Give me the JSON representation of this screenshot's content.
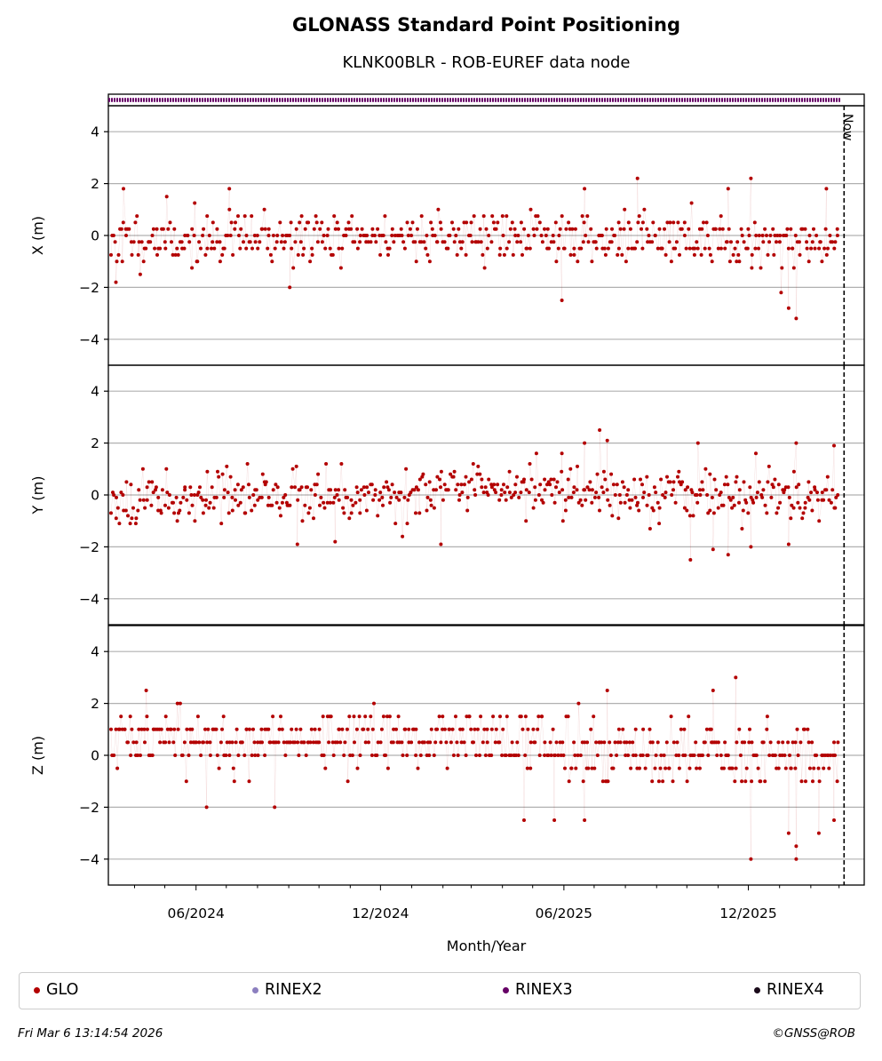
{
  "title": "GLONASS Standard Point Positioning",
  "subtitle": "KLNK00BLR - ROB-EUREF data node",
  "now_label": "Now",
  "xlabel": "Month/Year",
  "x_ticks": [
    "06/2024",
    "12/2024",
    "06/2025",
    "12/2025"
  ],
  "legend": [
    {
      "label": "GLO",
      "color": "#b30000"
    },
    {
      "label": "RINEX2",
      "color": "#8c7fbf"
    },
    {
      "label": "RINEX3",
      "color": "#660066"
    },
    {
      "label": "RINEX4",
      "color": "#1a0a1a"
    }
  ],
  "footer_left": "Fri Mar  6 13:14:54 2026",
  "footer_right": "©GNSS@ROB",
  "chart_data": {
    "type": "scatter",
    "x_range": [
      "2024-03-06",
      "2026-03-26"
    ],
    "now": "2026-03-06",
    "grid": true,
    "legend_position": "bottom",
    "availability_bar": {
      "format": "RINEX3",
      "from": "2024-03-06",
      "to": "2026-03-03"
    },
    "panels": [
      {
        "name": "X",
        "ylabel": "X (m)",
        "ylim": [
          -5,
          5
        ],
        "yticks": [
          -4,
          -2,
          0,
          2,
          4
        ],
        "seed": 11,
        "trend": [
          [
            0,
            -0.2
          ],
          [
            0.5,
            0
          ],
          [
            1,
            -0.3
          ]
        ],
        "spread": 0.8,
        "quant": 0.25,
        "outliers": [
          [
            0.01,
            -1.8
          ],
          [
            0.02,
            1.8
          ],
          [
            0.16,
            1.8
          ],
          [
            0.24,
            -2.0
          ],
          [
            0.6,
            -2.5
          ],
          [
            0.63,
            1.8
          ],
          [
            0.7,
            2.2
          ],
          [
            0.82,
            1.8
          ],
          [
            0.85,
            2.2
          ],
          [
            0.89,
            -2.2
          ],
          [
            0.9,
            -2.8
          ],
          [
            0.91,
            -3.2
          ],
          [
            0.95,
            1.8
          ]
        ]
      },
      {
        "name": "Y",
        "ylabel": "Y (m)",
        "ylim": [
          -5,
          5
        ],
        "yticks": [
          -4,
          -2,
          0,
          2,
          4
        ],
        "seed": 23,
        "trend": [
          [
            0,
            -0.1
          ],
          [
            0.45,
            0.1
          ],
          [
            0.62,
            0.3
          ],
          [
            0.75,
            0
          ],
          [
            1,
            0
          ]
        ],
        "spread": 0.75,
        "quant": 0.1,
        "outliers": [
          [
            0.25,
            -1.9
          ],
          [
            0.3,
            -1.8
          ],
          [
            0.44,
            -1.9
          ],
          [
            0.6,
            1.6
          ],
          [
            0.63,
            2.0
          ],
          [
            0.65,
            2.5
          ],
          [
            0.66,
            2.1
          ],
          [
            0.77,
            -2.5
          ],
          [
            0.78,
            2.0
          ],
          [
            0.8,
            -2.1
          ],
          [
            0.82,
            -2.3
          ],
          [
            0.85,
            -2.0
          ],
          [
            0.91,
            2.0
          ],
          [
            0.9,
            -1.9
          ],
          [
            0.96,
            1.9
          ]
        ]
      },
      {
        "name": "Z",
        "ylabel": "Z (m)",
        "ylim": [
          -5,
          5
        ],
        "yticks": [
          -4,
          -2,
          0,
          2,
          4
        ],
        "seed": 37,
        "trend": [
          [
            0,
            0.5
          ],
          [
            0.55,
            0.6
          ],
          [
            0.6,
            0.2
          ],
          [
            0.75,
            0
          ],
          [
            1,
            0
          ]
        ],
        "spread": 0.9,
        "quant": 0.5,
        "outliers": [
          [
            0.05,
            2.5
          ],
          [
            0.13,
            -2.0
          ],
          [
            0.22,
            -2.0
          ],
          [
            0.55,
            -2.5
          ],
          [
            0.59,
            -2.5
          ],
          [
            0.63,
            -2.5
          ],
          [
            0.66,
            2.5
          ],
          [
            0.8,
            2.5
          ],
          [
            0.83,
            3.0
          ],
          [
            0.85,
            -4.0
          ],
          [
            0.9,
            -3.0
          ],
          [
            0.91,
            -3.5
          ],
          [
            0.91,
            -4.0
          ],
          [
            0.94,
            -3.0
          ],
          [
            0.96,
            -2.5
          ]
        ]
      }
    ]
  }
}
